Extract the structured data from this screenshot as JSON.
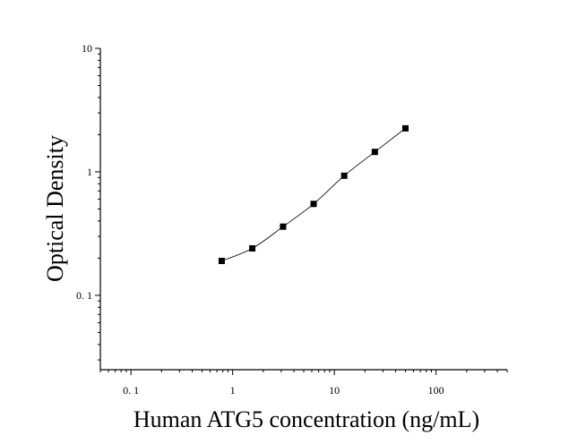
{
  "chart_data": {
    "type": "scatter",
    "title": "",
    "xlabel": "Human ATG5 concentration (ng/mL)",
    "ylabel": "Optical Density",
    "xscale": "log",
    "yscale": "log",
    "xlim": [
      0.05,
      500
    ],
    "ylim": [
      0.025,
      10
    ],
    "grid": false,
    "x_ticks": [
      {
        "value": 0.1,
        "label": "0. 1"
      },
      {
        "value": 1,
        "label": "1"
      },
      {
        "value": 10,
        "label": "10"
      },
      {
        "value": 100,
        "label": "100"
      }
    ],
    "y_ticks": [
      {
        "value": 0.1,
        "label": "0. 1"
      },
      {
        "value": 1,
        "label": "1"
      },
      {
        "value": 10,
        "label": "10"
      }
    ],
    "series": [
      {
        "marker": "square",
        "color": "#000000",
        "x": [
          0.78,
          1.56,
          3.13,
          6.25,
          12.5,
          25,
          50
        ],
        "y": [
          0.19,
          0.24,
          0.36,
          0.55,
          0.93,
          1.45,
          2.25
        ]
      }
    ],
    "fit_curve": true
  }
}
